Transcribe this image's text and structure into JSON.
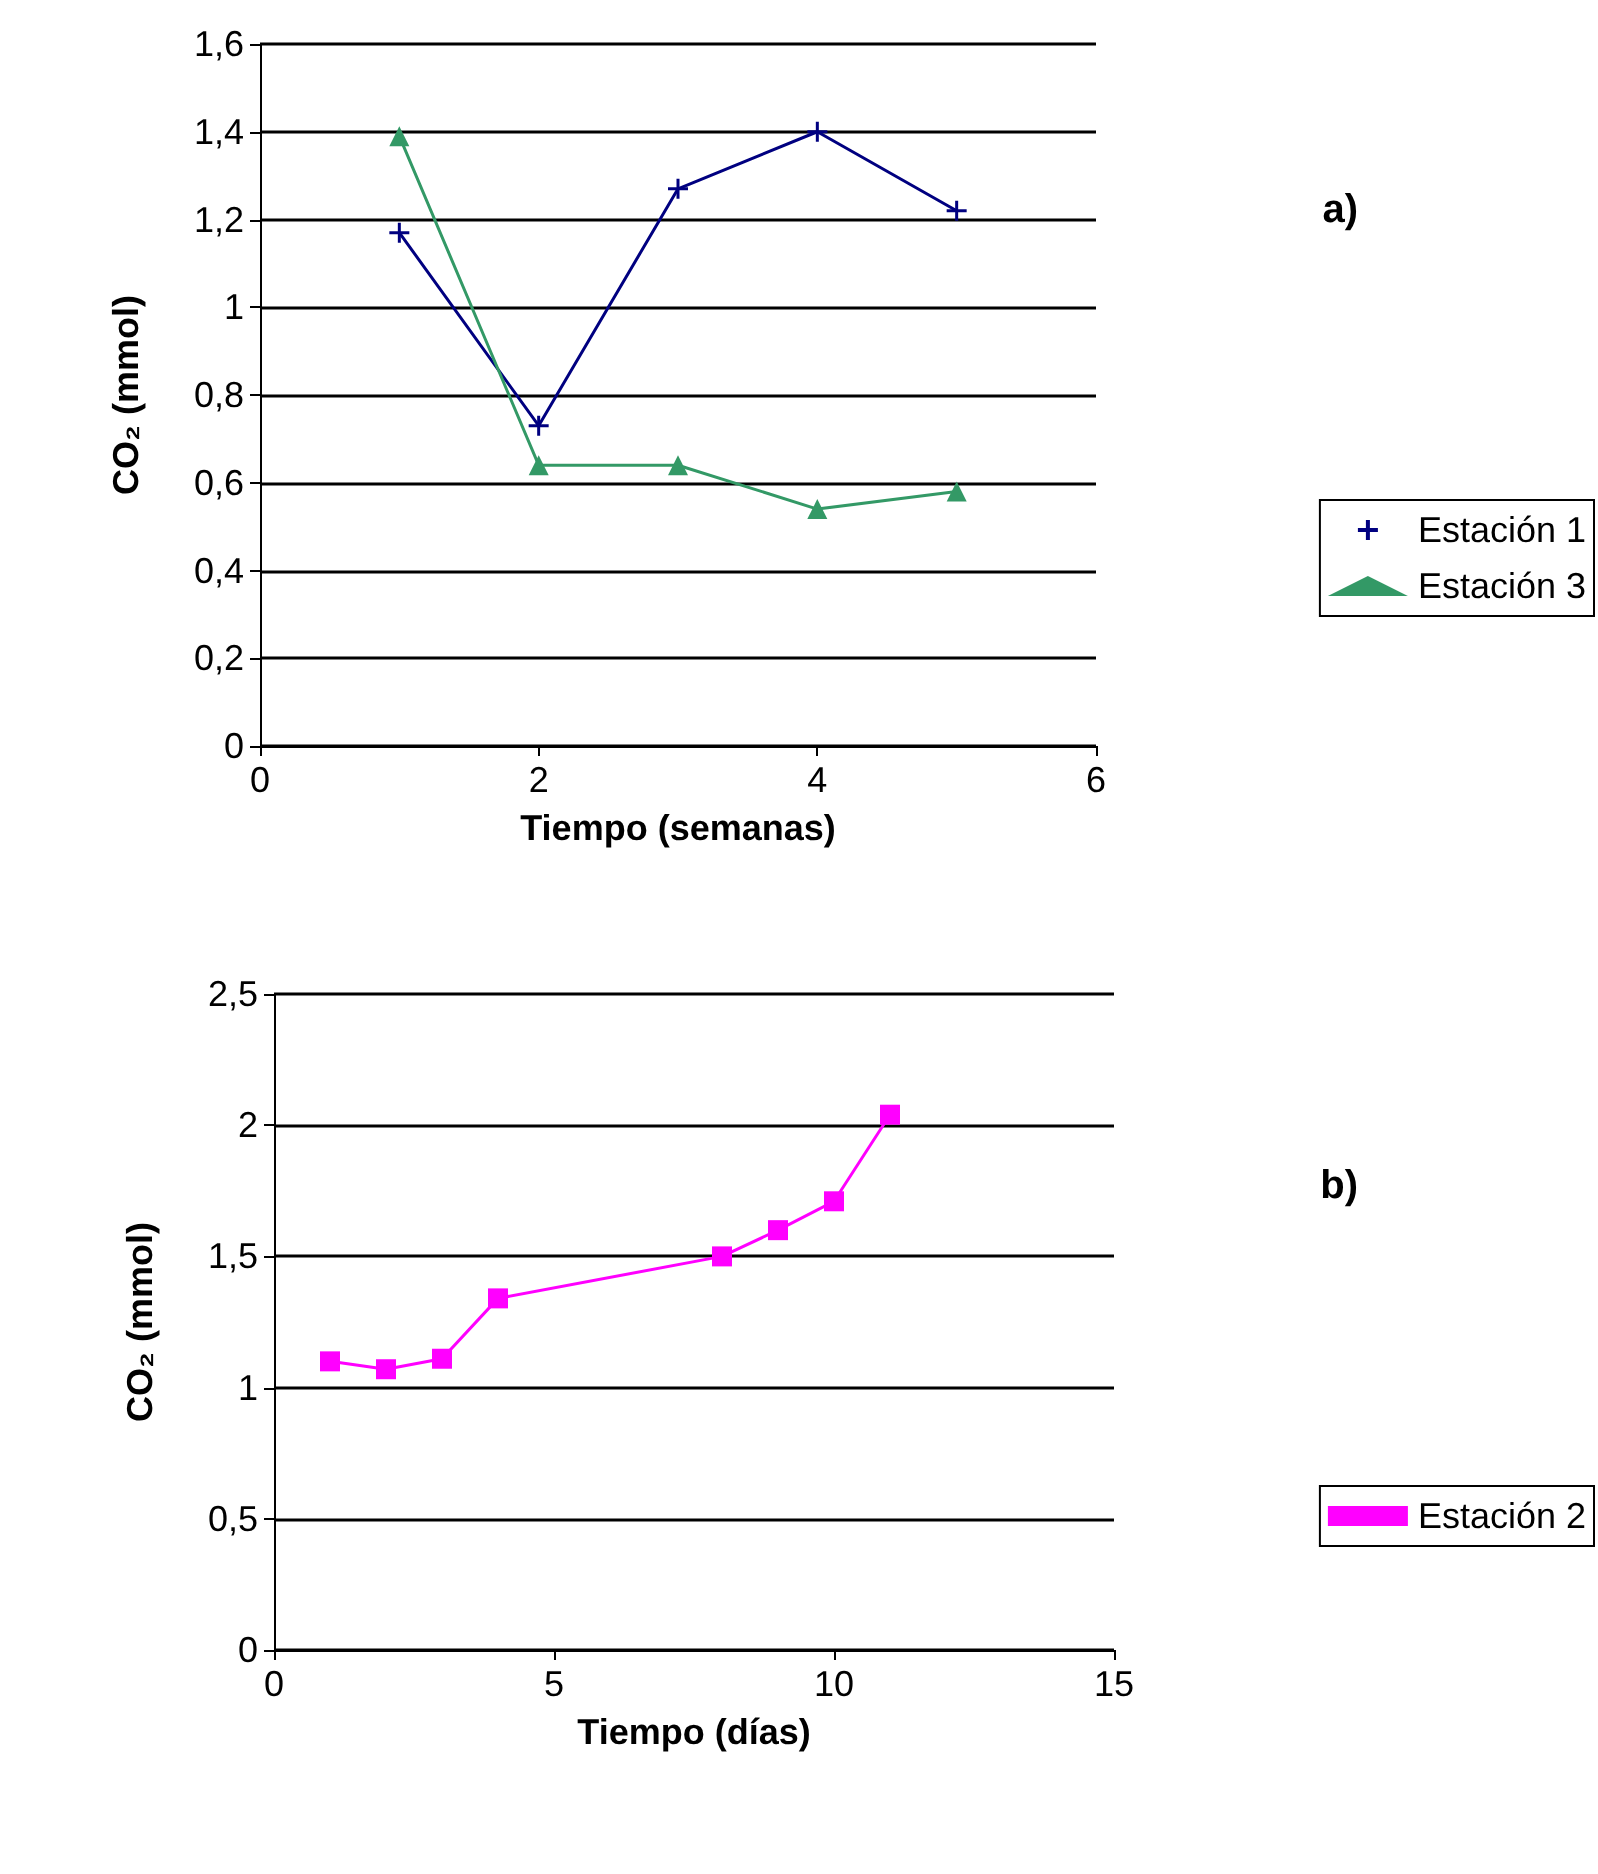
{
  "chart_data": [
    {
      "type": "line",
      "xlabel": "Tiempo (semanas)",
      "ylabel": "CO₂ (mmol)",
      "annotations": [
        "a)"
      ],
      "x": [
        1,
        2,
        3,
        4,
        5
      ],
      "series": [
        {
          "name": "Estación 1",
          "color": "#000080",
          "marker": "cross",
          "values": [
            1.17,
            0.73,
            1.27,
            1.4,
            1.22
          ]
        },
        {
          "name": "Estación 3",
          "color": "#339966",
          "marker": "triangle",
          "values": [
            1.39,
            0.64,
            0.64,
            0.54,
            0.58
          ]
        }
      ],
      "xlim": [
        0,
        6
      ],
      "xticks": [
        0,
        2,
        4,
        6
      ],
      "ylim": [
        0,
        1.6
      ],
      "yticks": [
        0,
        {
          "value": 0.2,
          "label": "0,2"
        },
        {
          "value": 0.4,
          "label": "0,4"
        },
        {
          "value": 0.6,
          "label": "0,6"
        },
        {
          "value": 0.8,
          "label": "0,8"
        },
        1,
        {
          "value": 1.2,
          "label": "1,2"
        },
        {
          "value": 1.4,
          "label": "1,4"
        },
        {
          "value": 1.6,
          "label": "1,6"
        }
      ],
      "grid": "y",
      "legend": "right"
    },
    {
      "type": "line",
      "xlabel": "Tiempo (días)",
      "ylabel": "CO₂ (mmol)",
      "annotations": [
        "b)"
      ],
      "x": [
        1,
        2,
        3,
        4,
        8,
        9,
        10,
        11
      ],
      "series": [
        {
          "name": "Estación 2",
          "color": "#ff00ff",
          "marker": "square",
          "values": [
            1.1,
            1.07,
            1.11,
            1.34,
            1.5,
            1.6,
            1.71,
            2.04
          ]
        }
      ],
      "xlim": [
        0,
        15
      ],
      "xticks": [
        0,
        5,
        10,
        15
      ],
      "ylim": [
        0,
        2.5
      ],
      "yticks": [
        0,
        {
          "value": 0.5,
          "label": "0,5"
        },
        1,
        {
          "value": 1.5,
          "label": "1,5"
        },
        2,
        {
          "value": 2.5,
          "label": "2,5"
        }
      ],
      "grid": "y",
      "legend": "right"
    }
  ]
}
